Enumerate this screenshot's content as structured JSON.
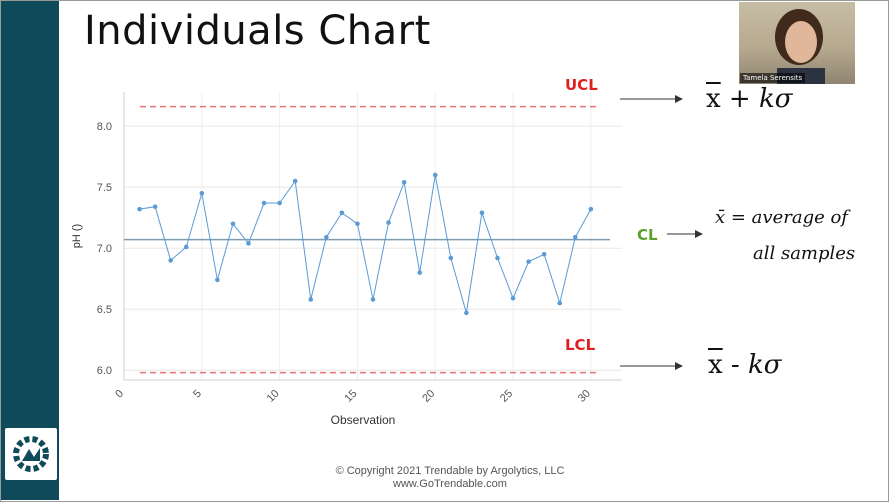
{
  "slide": {
    "title": "Individuals Chart",
    "presenter_name": "Tamela Serensits",
    "footer_line1": "© Copyright 2021   Trendable by Argolytics, LLC",
    "footer_line2": "www.GoTrendable.com"
  },
  "annotations": {
    "ucl_label": "UCL",
    "cl_label": "CL",
    "lcl_label": "LCL",
    "ucl_formula_x": "x",
    "ucl_formula_rest": " + kσ",
    "lcl_formula_x": "x",
    "lcl_formula_rest": " - kσ",
    "cl_formula_line1": "x̄ = average of",
    "cl_formula_line2": "all samples"
  },
  "colors": {
    "sidebar": "#0e4a5a",
    "ucl_lcl_text": "#e02020",
    "cl_text": "#5aa02c",
    "series_line": "#5b9bd5",
    "center_line": "#7f9bb0",
    "limit_line": "#e57373"
  },
  "chart_data": {
    "type": "line",
    "title": "",
    "xlabel": "Observation",
    "ylabel": "pH ()",
    "xlim": [
      0,
      32
    ],
    "ylim": [
      5.92,
      8.28
    ],
    "x_ticks": [
      0,
      5,
      10,
      15,
      20,
      25,
      30
    ],
    "y_ticks": [
      6.0,
      6.5,
      7.0,
      7.5,
      8.0
    ],
    "y_tick_labels": [
      "6.0",
      "6.5",
      "7.0",
      "7.5",
      "8.0"
    ],
    "grid": true,
    "x": [
      1,
      2,
      3,
      4,
      5,
      6,
      7,
      8,
      9,
      10,
      11,
      12,
      13,
      14,
      15,
      16,
      17,
      18,
      19,
      20,
      21,
      22,
      23,
      24,
      25,
      26,
      27,
      28,
      29,
      30
    ],
    "series": [
      {
        "values": [
          7.32,
          7.34,
          6.9,
          7.01,
          7.45,
          6.74,
          7.2,
          7.04,
          7.37,
          7.37,
          7.55,
          6.58,
          7.09,
          7.29,
          7.2,
          6.58,
          7.21,
          7.54,
          6.8,
          7.6,
          6.92,
          6.47,
          7.29,
          6.92,
          6.59,
          6.89,
          6.95,
          6.55,
          7.09,
          7.32
        ]
      }
    ],
    "center_line": 7.07,
    "ucl": 8.16,
    "lcl": 5.98
  }
}
